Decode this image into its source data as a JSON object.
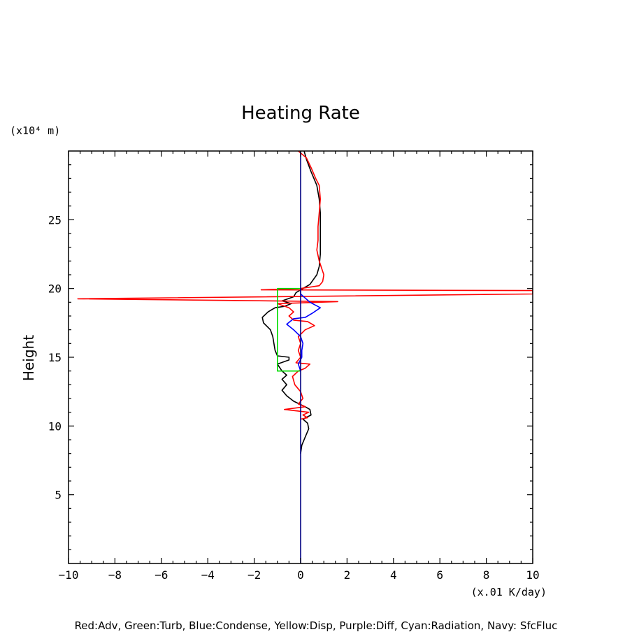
{
  "chart_data": {
    "type": "line",
    "title": "Heating Rate",
    "xlabel": "",
    "ylabel": "Height",
    "x_unit": "(x.01 K/day)",
    "y_unit": "(x10⁴ m)",
    "legend_text": "Red:Adv, Green:Turb, Blue:Condense, Yellow:Disp, Purple:Diff, Cyan:Radiation, Navy: SfcFluc",
    "xlim": [
      -10,
      10
    ],
    "ylim": [
      0,
      30
    ],
    "x_ticks": [
      -10,
      -8,
      -6,
      -4,
      -2,
      0,
      2,
      4,
      6,
      8,
      10
    ],
    "x_tick_labels": [
      "−10",
      "−8",
      "−6",
      "−4",
      "−2",
      "0",
      "2",
      "4",
      "6",
      "8",
      "10"
    ],
    "y_ticks": [
      5,
      10,
      15,
      20,
      25
    ],
    "y_tick_labels": [
      "5",
      "10",
      "15",
      "20",
      "25"
    ],
    "series": [
      {
        "color": "#000000",
        "points": [
          [
            0.0,
            8.0
          ],
          [
            0.05,
            8.6
          ],
          [
            0.2,
            9.2
          ],
          [
            0.35,
            9.8
          ],
          [
            0.3,
            10.2
          ],
          [
            0.1,
            10.5
          ],
          [
            0.45,
            10.8
          ],
          [
            0.4,
            11.2
          ],
          [
            0.2,
            11.4
          ],
          [
            -0.3,
            11.8
          ],
          [
            -0.6,
            12.2
          ],
          [
            -0.8,
            12.6
          ],
          [
            -0.6,
            13.0
          ],
          [
            -0.8,
            13.4
          ],
          [
            -0.6,
            13.7
          ],
          [
            -0.8,
            14.0
          ],
          [
            -1.0,
            14.5
          ],
          [
            -0.5,
            14.8
          ],
          [
            -0.5,
            15.0
          ],
          [
            -1.0,
            15.1
          ],
          [
            -1.1,
            15.5
          ],
          [
            -1.15,
            16.0
          ],
          [
            -1.2,
            16.5
          ],
          [
            -1.3,
            17.0
          ],
          [
            -1.6,
            17.5
          ],
          [
            -1.65,
            17.9
          ],
          [
            -1.4,
            18.3
          ],
          [
            -1.1,
            18.6
          ],
          [
            -0.7,
            18.7
          ],
          [
            -0.4,
            18.9
          ],
          [
            -0.8,
            19.1
          ],
          [
            -0.3,
            19.4
          ],
          [
            -0.2,
            19.7
          ],
          [
            0.1,
            20.0
          ],
          [
            0.4,
            20.3
          ],
          [
            0.7,
            21.0
          ],
          [
            0.8,
            21.6
          ],
          [
            0.85,
            22.5
          ],
          [
            0.85,
            23.5
          ],
          [
            0.85,
            24.5
          ],
          [
            0.85,
            25.5
          ],
          [
            0.8,
            26.5
          ],
          [
            0.7,
            27.5
          ],
          [
            0.45,
            28.5
          ],
          [
            0.25,
            29.4
          ],
          [
            0.15,
            30.0
          ]
        ]
      },
      {
        "color": "#ff0000",
        "points": [
          [
            -0.1,
            30.0
          ],
          [
            0.25,
            29.5
          ],
          [
            0.45,
            28.8
          ],
          [
            0.65,
            28.0
          ],
          [
            0.8,
            27.5
          ],
          [
            0.85,
            26.5
          ],
          [
            0.8,
            25.5
          ],
          [
            0.75,
            24.5
          ],
          [
            0.75,
            23.5
          ],
          [
            0.7,
            22.8
          ],
          [
            0.8,
            22.0
          ],
          [
            0.9,
            21.5
          ],
          [
            1.0,
            21.0
          ],
          [
            0.95,
            20.5
          ],
          [
            0.8,
            20.2
          ],
          [
            0.0,
            20.0
          ],
          [
            -1.7,
            19.9
          ],
          [
            10.0,
            19.85
          ],
          [
            10.0,
            19.6
          ],
          [
            -9.6,
            19.25
          ],
          [
            1.6,
            19.05
          ],
          [
            -1.0,
            18.9
          ],
          [
            -0.5,
            18.6
          ],
          [
            -0.3,
            18.3
          ],
          [
            -0.5,
            18.0
          ],
          [
            -0.3,
            17.7
          ],
          [
            0.3,
            17.6
          ],
          [
            0.6,
            17.3
          ],
          [
            0.2,
            17.0
          ],
          [
            -0.1,
            16.5
          ],
          [
            0.0,
            16.0
          ],
          [
            -0.1,
            15.5
          ],
          [
            0.0,
            15.0
          ],
          [
            -0.2,
            14.6
          ],
          [
            0.4,
            14.5
          ],
          [
            0.2,
            14.2
          ],
          [
            -0.1,
            14.0
          ],
          [
            -0.35,
            13.6
          ],
          [
            -0.25,
            13.0
          ],
          [
            0.0,
            12.5
          ],
          [
            0.1,
            12.0
          ],
          [
            -0.1,
            11.6
          ],
          [
            0.2,
            11.4
          ],
          [
            -0.7,
            11.2
          ],
          [
            0.35,
            11.0
          ],
          [
            0.1,
            10.8
          ],
          [
            0.3,
            10.6
          ],
          [
            0.0,
            10.5
          ]
        ]
      },
      {
        "color": "#00dd00",
        "points": [
          [
            0.0,
            20.0
          ],
          [
            -1.0,
            20.0
          ],
          [
            -1.0,
            14.0
          ],
          [
            0.0,
            14.0
          ]
        ]
      },
      {
        "color": "#0000ff",
        "points": [
          [
            0.0,
            20.0
          ],
          [
            0.0,
            19.6
          ],
          [
            0.4,
            19.0
          ],
          [
            0.85,
            18.6
          ],
          [
            0.5,
            18.2
          ],
          [
            0.2,
            17.9
          ],
          [
            -0.3,
            17.8
          ],
          [
            -0.6,
            17.4
          ],
          [
            -0.3,
            17.0
          ],
          [
            0.0,
            16.5
          ],
          [
            0.1,
            16.0
          ],
          [
            0.05,
            15.5
          ],
          [
            0.05,
            15.0
          ],
          [
            -0.1,
            14.5
          ],
          [
            0.0,
            14.0
          ]
        ]
      },
      {
        "color": "#000080",
        "points": [
          [
            0.0,
            0.0
          ],
          [
            0.0,
            30.0
          ]
        ]
      }
    ]
  }
}
